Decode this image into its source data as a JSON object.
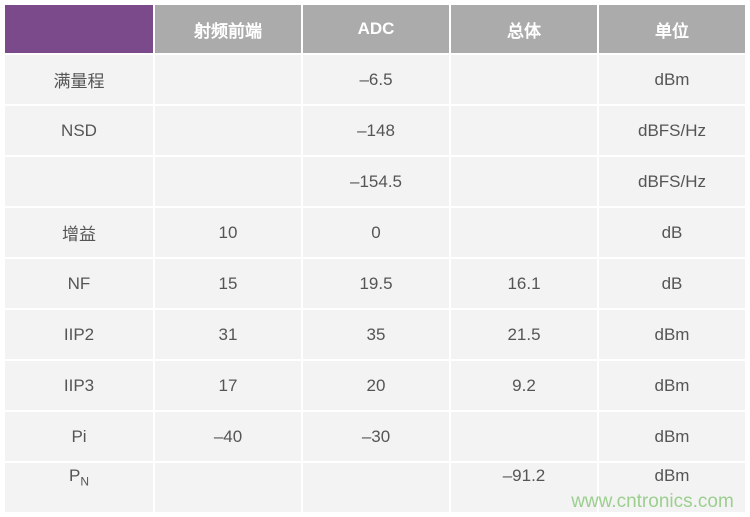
{
  "table": {
    "headers": [
      "",
      "射频前端",
      "ADC",
      "总体",
      "单位"
    ],
    "rows": [
      {
        "label": "满量程",
        "sub": "",
        "rf": "",
        "adc": "–6.5",
        "total": "",
        "unit": "dBm"
      },
      {
        "label": "NSD",
        "sub": "",
        "rf": "",
        "adc": "–148",
        "total": "",
        "unit": "dBFS/Hz"
      },
      {
        "label": "",
        "sub": "",
        "rf": "",
        "adc": "–154.5",
        "total": "",
        "unit": "dBFS/Hz"
      },
      {
        "label": "增益",
        "sub": "",
        "rf": "10",
        "adc": "0",
        "total": "",
        "unit": "dB"
      },
      {
        "label": "NF",
        "sub": "",
        "rf": "15",
        "adc": "19.5",
        "total": "16.1",
        "unit": "dB"
      },
      {
        "label": "IIP2",
        "sub": "",
        "rf": "31",
        "adc": "35",
        "total": "21.5",
        "unit": "dBm"
      },
      {
        "label": "IIP3",
        "sub": "",
        "rf": "17",
        "adc": "20",
        "total": "9.2",
        "unit": "dBm"
      },
      {
        "label": "Pi",
        "sub": "",
        "rf": "–40",
        "adc": "–30",
        "total": "",
        "unit": "dBm"
      },
      {
        "label": "P",
        "sub": "N",
        "rf": "",
        "adc": "",
        "total": "–91.2",
        "unit": "dBm"
      }
    ]
  },
  "watermark": "www.cntronics.com",
  "colors": {
    "corner": "#7b4a8a",
    "header": "#ababab",
    "cell": "#f3f3f3",
    "text": "#555555",
    "watermark": "#9ccf8f"
  }
}
